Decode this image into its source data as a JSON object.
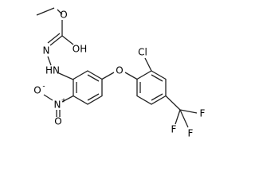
{
  "atoms": {
    "ester_o": {
      "label": "O"
    },
    "hydroxyl": {
      "label": "OH"
    },
    "imine_n": {
      "label": "N"
    },
    "amine_n": {
      "label": "HN"
    },
    "nitro_n": {
      "label": "N",
      "charge": "+"
    },
    "nitro_o_minus": {
      "label": "O",
      "charge": "-"
    },
    "nitro_o": {
      "label": "O"
    },
    "ether_o": {
      "label": "O"
    },
    "chlorine": {
      "label": "Cl"
    },
    "fluorine_1": {
      "label": "F"
    },
    "fluorine_2": {
      "label": "F"
    },
    "fluorine_3": {
      "label": "F"
    }
  }
}
